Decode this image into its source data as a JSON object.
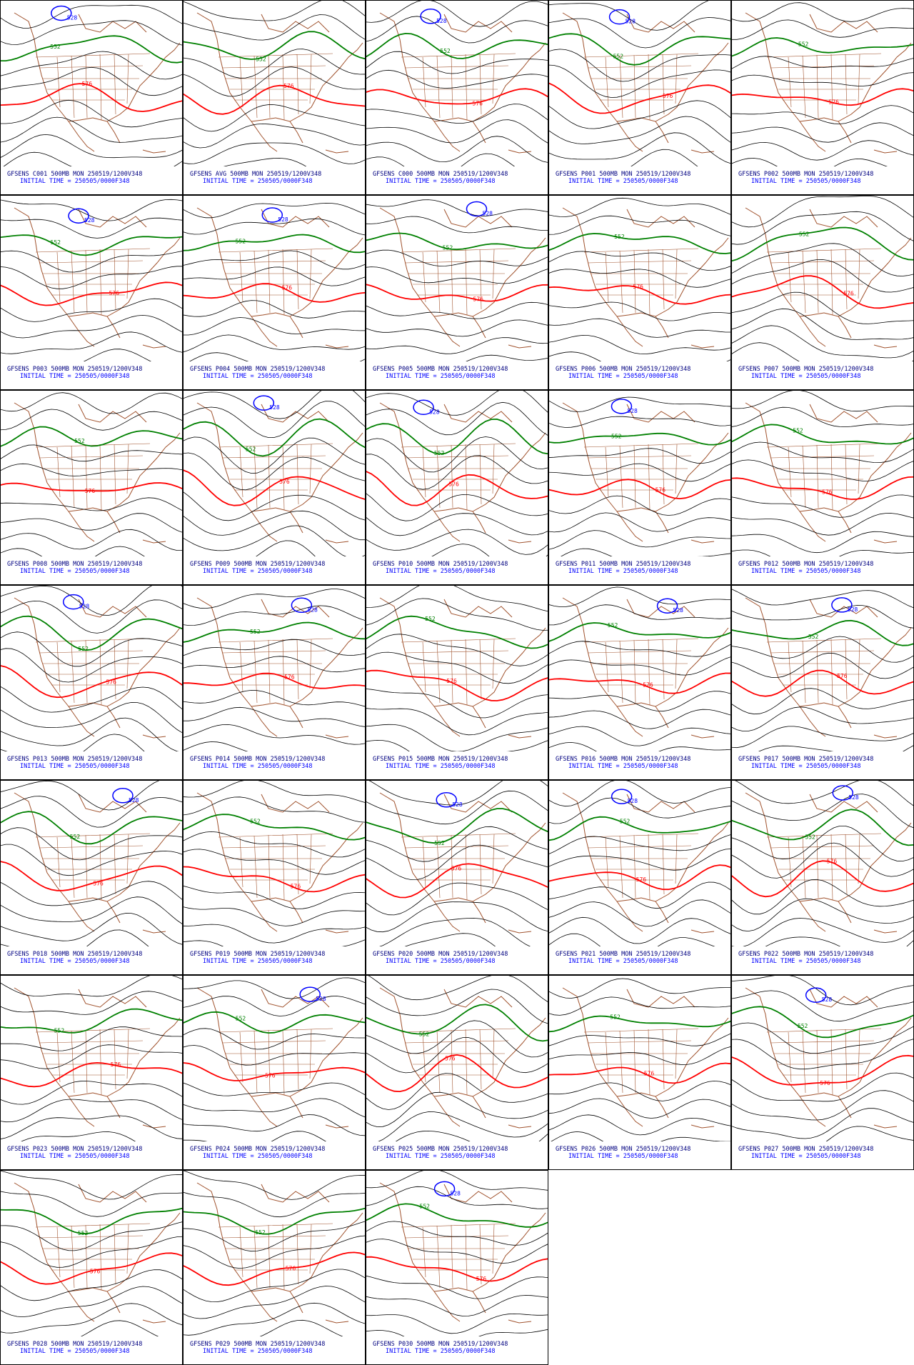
{
  "panels": [
    {
      "title": "GFSENS C001 500MB MON 250519/1200V348",
      "init": "INITIAL TIME = 250505/0000F348",
      "labels": [
        {
          "text": "552",
          "color": "#008000"
        },
        {
          "text": "576",
          "color": "#ff0000"
        },
        {
          "text": "528",
          "color": "#0000ff"
        }
      ]
    },
    {
      "title": "GFSENS AVG 500MB MON 250519/1200V348",
      "init": "INITIAL TIME = 250505/0000F348",
      "labels": [
        {
          "text": "552",
          "color": "#008000"
        },
        {
          "text": "576",
          "color": "#ff0000"
        }
      ]
    },
    {
      "title": "GFSENS C000 500MB MON 250519/1200V348",
      "init": "INITIAL TIME = 250505/0000F348",
      "labels": [
        {
          "text": "552",
          "color": "#008000"
        },
        {
          "text": "576",
          "color": "#ff0000"
        },
        {
          "text": "528",
          "color": "#0000ff"
        }
      ]
    },
    {
      "title": "GFSENS P001 500MB MON 250519/1200V348",
      "init": "INITIAL TIME = 250505/0000F348",
      "labels": [
        {
          "text": "552",
          "color": "#008000"
        },
        {
          "text": "576",
          "color": "#ff0000"
        },
        {
          "text": "528",
          "color": "#0000ff"
        }
      ]
    },
    {
      "title": "GFSENS P002 500MB MON 250519/1200V348",
      "init": "INITIAL TIME = 250505/0000F348",
      "labels": [
        {
          "text": "552",
          "color": "#008000"
        },
        {
          "text": "576",
          "color": "#ff0000"
        }
      ]
    },
    {
      "title": "GFSENS P003 500MB MON 250519/1200V348",
      "init": "INITIAL TIME = 250505/0000F348",
      "labels": [
        {
          "text": "552",
          "color": "#008000"
        },
        {
          "text": "576",
          "color": "#ff0000"
        },
        {
          "text": "528",
          "color": "#0000ff"
        }
      ]
    },
    {
      "title": "GFSENS P004 500MB MON 250519/1200V348",
      "init": "INITIAL TIME = 250505/0000F348",
      "labels": [
        {
          "text": "552",
          "color": "#008000"
        },
        {
          "text": "576",
          "color": "#ff0000"
        },
        {
          "text": "528",
          "color": "#0000ff"
        }
      ]
    },
    {
      "title": "GFSENS P005 500MB MON 250519/1200V348",
      "init": "INITIAL TIME = 250505/0000F348",
      "labels": [
        {
          "text": "552",
          "color": "#008000"
        },
        {
          "text": "576",
          "color": "#ff0000"
        },
        {
          "text": "528",
          "color": "#0000ff"
        }
      ]
    },
    {
      "title": "GFSENS P006 500MB MON 250519/1200V348",
      "init": "INITIAL TIME = 250505/0000F348",
      "labels": [
        {
          "text": "552",
          "color": "#008000"
        },
        {
          "text": "576",
          "color": "#ff0000"
        }
      ]
    },
    {
      "title": "GFSENS P007 500MB MON 250519/1200V348",
      "init": "INITIAL TIME = 250505/0000F348",
      "labels": [
        {
          "text": "552",
          "color": "#008000"
        },
        {
          "text": "576",
          "color": "#ff0000"
        }
      ]
    },
    {
      "title": "GFSENS P008 500MB MON 250519/1200V348",
      "init": "INITIAL TIME = 250505/0000F348",
      "labels": [
        {
          "text": "552",
          "color": "#008000"
        },
        {
          "text": "576",
          "color": "#ff0000"
        }
      ]
    },
    {
      "title": "GFSENS P009 500MB MON 250519/1200V348",
      "init": "INITIAL TIME = 250505/0000F348",
      "labels": [
        {
          "text": "552",
          "color": "#008000"
        },
        {
          "text": "576",
          "color": "#ff0000"
        },
        {
          "text": "528",
          "color": "#0000ff"
        }
      ]
    },
    {
      "title": "GFSENS P010 500MB MON 250519/1200V348",
      "init": "INITIAL TIME = 250505/0000F348",
      "labels": [
        {
          "text": "552",
          "color": "#008000"
        },
        {
          "text": "576",
          "color": "#ff0000"
        },
        {
          "text": "528",
          "color": "#0000ff"
        }
      ]
    },
    {
      "title": "GFSENS P011 500MB MON 250519/1200V348",
      "init": "INITIAL TIME = 250505/0000F348",
      "labels": [
        {
          "text": "552",
          "color": "#008000"
        },
        {
          "text": "576",
          "color": "#ff0000"
        },
        {
          "text": "528",
          "color": "#0000ff"
        }
      ]
    },
    {
      "title": "GFSENS P012 500MB MON 250519/1200V348",
      "init": "INITIAL TIME = 250505/0000F348",
      "labels": [
        {
          "text": "552",
          "color": "#008000"
        },
        {
          "text": "576",
          "color": "#ff0000"
        }
      ]
    },
    {
      "title": "GFSENS P013 500MB MON 250519/1200V348",
      "init": "INITIAL TIME = 250505/0000F348",
      "labels": [
        {
          "text": "552",
          "color": "#008000"
        },
        {
          "text": "576",
          "color": "#ff0000"
        },
        {
          "text": "528",
          "color": "#0000ff"
        }
      ]
    },
    {
      "title": "GFSENS P014 500MB MON 250519/1200V348",
      "init": "INITIAL TIME = 250505/0000F348",
      "labels": [
        {
          "text": "552",
          "color": "#008000"
        },
        {
          "text": "576",
          "color": "#ff0000"
        },
        {
          "text": "528",
          "color": "#0000ff"
        }
      ]
    },
    {
      "title": "GFSENS P015 500MB MON 250519/1200V348",
      "init": "INITIAL TIME = 250505/0000F348",
      "labels": [
        {
          "text": "552",
          "color": "#008000"
        },
        {
          "text": "576",
          "color": "#ff0000"
        }
      ]
    },
    {
      "title": "GFSENS P016 500MB MON 250519/1200V348",
      "init": "INITIAL TIME = 250505/0000F348",
      "labels": [
        {
          "text": "552",
          "color": "#008000"
        },
        {
          "text": "576",
          "color": "#ff0000"
        },
        {
          "text": "528",
          "color": "#0000ff"
        }
      ]
    },
    {
      "title": "GFSENS P017 500MB MON 250519/1200V348",
      "init": "INITIAL TIME = 250505/0000F348",
      "labels": [
        {
          "text": "552",
          "color": "#008000"
        },
        {
          "text": "576",
          "color": "#ff0000"
        },
        {
          "text": "528",
          "color": "#0000ff"
        }
      ]
    },
    {
      "title": "GFSENS P018 500MB MON 250519/1200V348",
      "init": "INITIAL TIME = 250505/0000F348",
      "labels": [
        {
          "text": "552",
          "color": "#008000"
        },
        {
          "text": "576",
          "color": "#ff0000"
        },
        {
          "text": "528",
          "color": "#0000ff"
        }
      ]
    },
    {
      "title": "GFSENS P019 500MB MON 250519/1200V348",
      "init": "INITIAL TIME = 250505/0000F348",
      "labels": [
        {
          "text": "552",
          "color": "#008000"
        },
        {
          "text": "576",
          "color": "#ff0000"
        }
      ]
    },
    {
      "title": "GFSENS P020 500MB MON 250519/1200V348",
      "init": "INITIAL TIME = 250505/0000F348",
      "labels": [
        {
          "text": "552",
          "color": "#008000"
        },
        {
          "text": "576",
          "color": "#ff0000"
        },
        {
          "text": "528",
          "color": "#0000ff"
        }
      ]
    },
    {
      "title": "GFSENS P021 500MB MON 250519/1200V348",
      "init": "INITIAL TIME = 250505/0000F348",
      "labels": [
        {
          "text": "552",
          "color": "#008000"
        },
        {
          "text": "576",
          "color": "#ff0000"
        },
        {
          "text": "528",
          "color": "#0000ff"
        }
      ]
    },
    {
      "title": "GFSENS P022 500MB MON 250519/1200V348",
      "init": "INITIAL TIME = 250505/0000F348",
      "labels": [
        {
          "text": "552",
          "color": "#008000"
        },
        {
          "text": "576",
          "color": "#ff0000"
        },
        {
          "text": "528",
          "color": "#0000ff"
        }
      ]
    },
    {
      "title": "GFSENS P023 500MB MON 250519/1200V348",
      "init": "INITIAL TIME = 250505/0000F348",
      "labels": [
        {
          "text": "552",
          "color": "#008000"
        },
        {
          "text": "576",
          "color": "#ff0000"
        }
      ]
    },
    {
      "title": "GFSENS P024 500MB MON 250519/1200V348",
      "init": "INITIAL TIME = 250505/0000F348",
      "labels": [
        {
          "text": "552",
          "color": "#008000"
        },
        {
          "text": "576",
          "color": "#ff0000"
        },
        {
          "text": "528",
          "color": "#0000ff"
        }
      ]
    },
    {
      "title": "GFSENS P025 500MB MON 250519/1200V348",
      "init": "INITIAL TIME = 250505/0000F348",
      "labels": [
        {
          "text": "552",
          "color": "#008000"
        },
        {
          "text": "576",
          "color": "#ff0000"
        }
      ]
    },
    {
      "title": "GFSENS P026 500MB MON 250519/1200V348",
      "init": "INITIAL TIME = 250505/0000F348",
      "labels": [
        {
          "text": "552",
          "color": "#008000"
        },
        {
          "text": "576",
          "color": "#ff0000"
        }
      ]
    },
    {
      "title": "GFSENS P027 500MB MON 250519/1200V348",
      "init": "INITIAL TIME = 250505/0000F348",
      "labels": [
        {
          "text": "552",
          "color": "#008000"
        },
        {
          "text": "576",
          "color": "#ff0000"
        },
        {
          "text": "528",
          "color": "#0000ff"
        }
      ]
    },
    {
      "title": "GFSENS P028 500MB MON 250519/1200V348",
      "init": "INITIAL TIME = 250505/0000F348",
      "labels": [
        {
          "text": "552",
          "color": "#008000"
        },
        {
          "text": "576",
          "color": "#ff0000"
        }
      ]
    },
    {
      "title": "GFSENS P029 500MB MON 250519/1200V348",
      "init": "INITIAL TIME = 250505/0000F348",
      "labels": [
        {
          "text": "552",
          "color": "#008000"
        },
        {
          "text": "576",
          "color": "#ff0000"
        }
      ]
    },
    {
      "title": "GFSENS P030 500MB MON 250519/1200V348",
      "init": "INITIAL TIME = 250505/0000F348",
      "labels": [
        {
          "text": "552",
          "color": "#008000"
        },
        {
          "text": "576",
          "color": "#ff0000"
        },
        {
          "text": "528",
          "color": "#0000ff"
        }
      ]
    }
  ]
}
